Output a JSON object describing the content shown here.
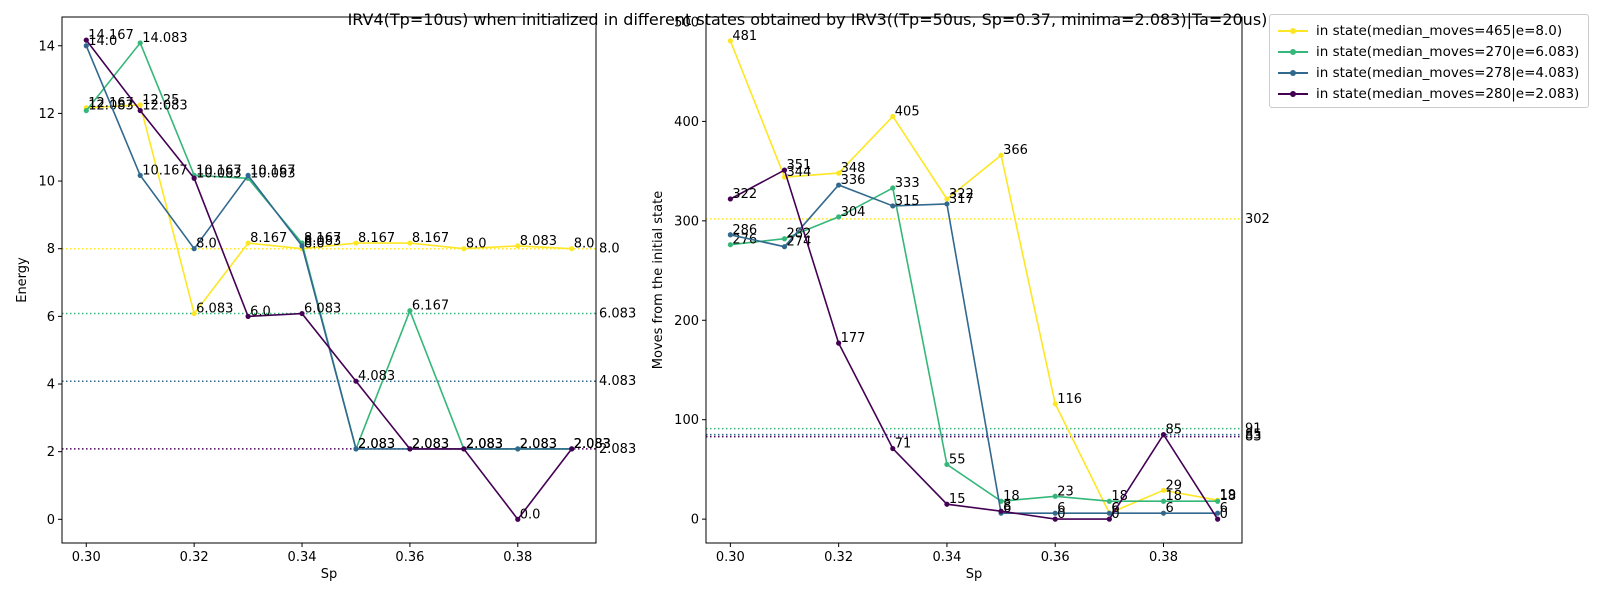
{
  "title": "IRV4(Tp=10us) when initialized in different states obtained by IRV3((Tp=50us, Sp=0.37, minima=2.083)|Ta=20us)",
  "series_colors": [
    "#fde725",
    "#35b779",
    "#31688e",
    "#440154"
  ],
  "legend": [
    "in state(median_moves=465|e=8.0)",
    "in state(median_moves=270|e=6.083)",
    "in state(median_moves=278|e=4.083)",
    "in state(median_moves=280|e=2.083)"
  ],
  "chart_data": [
    {
      "type": "line",
      "xlabel": "Sp",
      "ylabel": "Energy",
      "xlim": [
        0.2955,
        0.3945
      ],
      "ylim": [
        -0.7,
        14.85
      ],
      "xticks": [
        0.3,
        0.32,
        0.34,
        0.36,
        0.38
      ],
      "xtick_labels": [
        "0.30",
        "0.32",
        "0.34",
        "0.36",
        "0.38"
      ],
      "yticks": [
        0,
        2,
        4,
        6,
        8,
        10,
        12,
        14
      ],
      "ytick_labels": [
        "0",
        "2",
        "4",
        "6",
        "8",
        "10",
        "12",
        "14"
      ],
      "x": [
        0.3,
        0.31,
        0.32,
        0.33,
        0.34,
        0.35,
        0.36,
        0.37,
        0.38,
        0.39
      ],
      "series": [
        {
          "values": [
            12.167,
            12.25,
            6.083,
            8.167,
            8.0,
            8.167,
            8.167,
            8.0,
            8.083,
            8.0
          ],
          "labels": [
            "12.167",
            "12.25",
            "6.083",
            "8.167",
            "8.0",
            "8.167",
            "8.167",
            "8.0",
            "8.083",
            "8.0"
          ]
        },
        {
          "values": [
            12.083,
            14.083,
            10.167,
            10.083,
            8.167,
            2.083,
            6.167,
            2.083,
            2.083,
            2.083
          ],
          "labels": [
            "12.083",
            "14.083",
            "10.167",
            "10.083",
            "8.167",
            "2.083",
            "6.167",
            "2.083",
            "2.083",
            "2.083"
          ]
        },
        {
          "values": [
            14.0,
            10.167,
            8.0,
            10.167,
            8.083,
            2.083,
            2.083,
            2.083,
            2.083,
            2.083
          ],
          "labels": [
            "14.0",
            "10.167",
            "8.0",
            "10.167",
            "8.083",
            "2.083",
            "2.083",
            "2.083",
            "2.083",
            "2.083"
          ]
        },
        {
          "values": [
            14.167,
            12.083,
            10.083,
            6.0,
            6.083,
            4.083,
            2.083,
            2.083,
            0.0,
            2.083
          ],
          "labels": [
            "14.167",
            "12.083",
            "10.083",
            "6.0",
            "6.083",
            "4.083",
            "2.083",
            "2.083",
            "0.0",
            "2.083"
          ]
        }
      ],
      "hlines": [
        {
          "value": 8.0,
          "label": "8.0"
        },
        {
          "value": 6.083,
          "label": "6.083"
        },
        {
          "value": 4.083,
          "label": "4.083"
        },
        {
          "value": 2.083,
          "label": "2.083"
        }
      ]
    },
    {
      "type": "line",
      "xlabel": "Sp",
      "ylabel": "Moves from the initial state",
      "xlim": [
        0.2955,
        0.3945
      ],
      "ylim": [
        -24,
        505
      ],
      "xticks": [
        0.3,
        0.32,
        0.34,
        0.36,
        0.38
      ],
      "xtick_labels": [
        "0.30",
        "0.32",
        "0.34",
        "0.36",
        "0.38"
      ],
      "yticks": [
        0,
        100,
        200,
        300,
        400
      ],
      "ytick_labels": [
        "0",
        "100",
        "200",
        "300",
        "400"
      ],
      "top_tick_label": "500",
      "x": [
        0.3,
        0.31,
        0.32,
        0.33,
        0.34,
        0.35,
        0.36,
        0.37,
        0.38,
        0.39
      ],
      "series": [
        {
          "values": [
            481,
            344,
            348,
            405,
            322,
            366,
            116,
            6,
            29,
            19
          ],
          "labels": [
            "481",
            "344",
            "348",
            "405",
            "322",
            "366",
            "116",
            "6",
            "29",
            "19"
          ]
        },
        {
          "values": [
            276,
            282,
            304,
            333,
            55,
            18,
            23,
            18,
            18,
            18
          ],
          "labels": [
            "276",
            "282",
            "304",
            "333",
            "55",
            "18",
            "23",
            "18",
            "18",
            "18"
          ]
        },
        {
          "values": [
            286,
            274,
            336,
            315,
            317,
            6,
            6,
            6,
            6,
            6
          ],
          "labels": [
            "286",
            "274",
            "336",
            "315",
            "317",
            "6",
            "6",
            "6",
            "6",
            "6"
          ]
        },
        {
          "values": [
            322,
            351,
            177,
            71,
            15,
            8,
            0,
            0,
            85,
            0
          ],
          "labels": [
            "322",
            "351",
            "177",
            "71",
            "15",
            "8",
            "0",
            "0",
            "85",
            "0"
          ]
        }
      ],
      "hlines": [
        {
          "value": 302,
          "label": "302"
        },
        {
          "value": 91,
          "label": "91"
        },
        {
          "value": 85,
          "label": "85"
        },
        {
          "value": 83,
          "label": "83"
        }
      ]
    }
  ]
}
